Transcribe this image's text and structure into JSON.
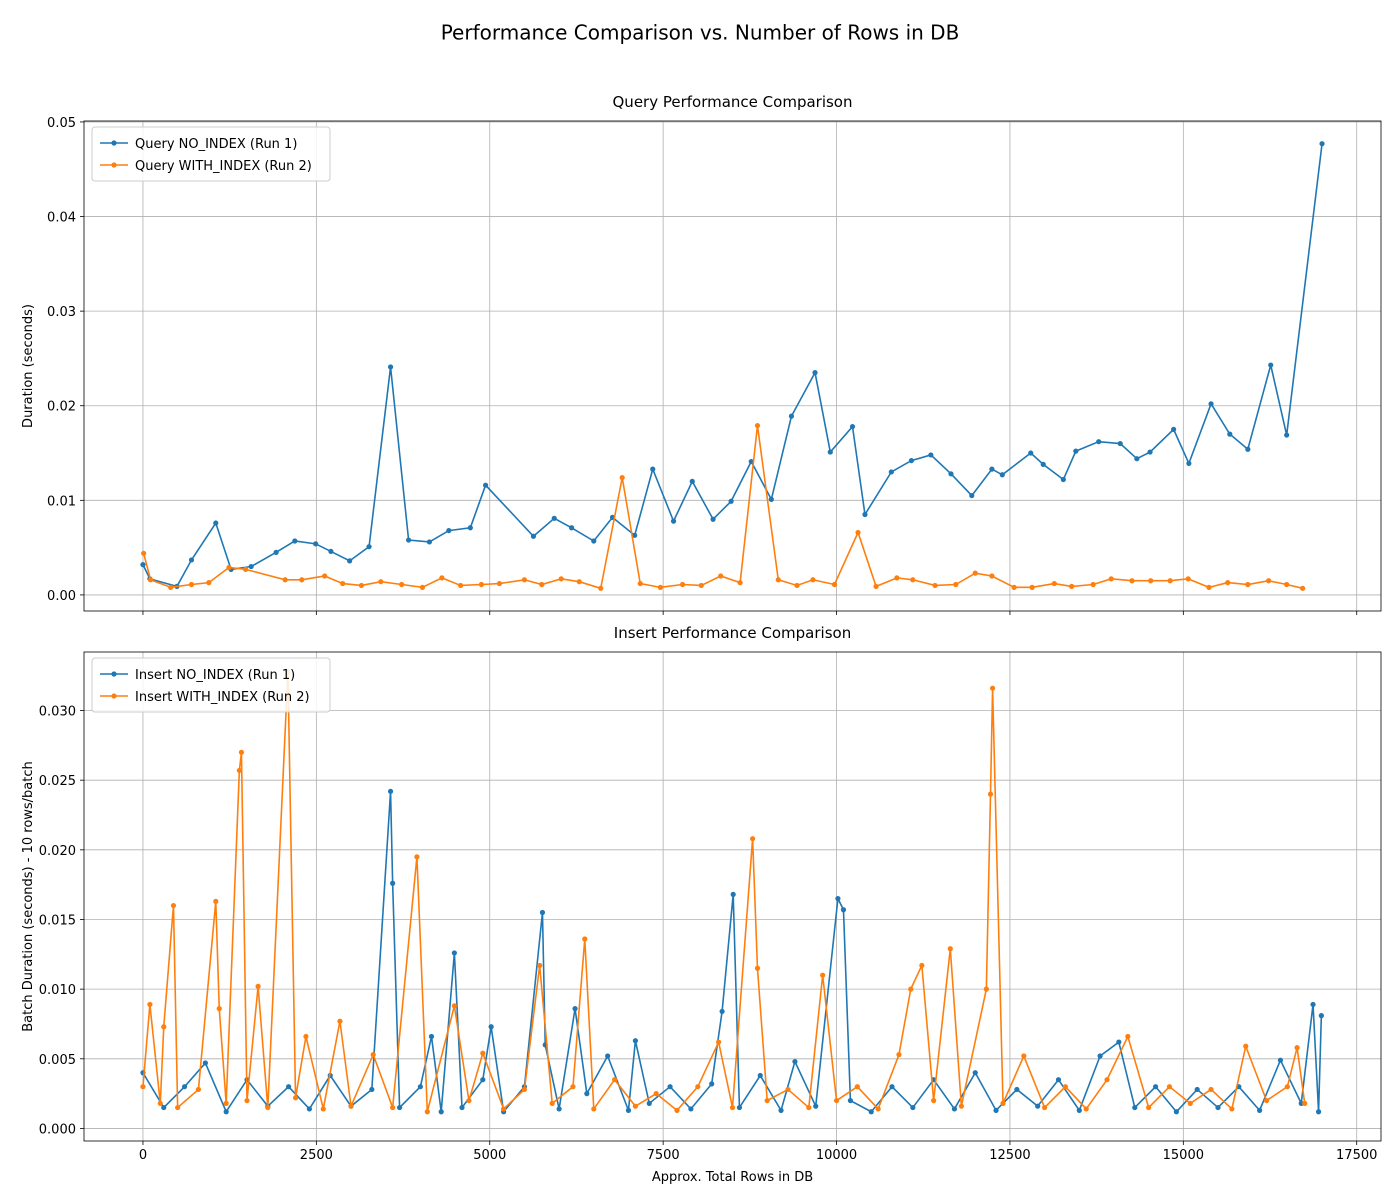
{
  "title": "Performance Comparison vs. Number of Rows in DB",
  "chart_data": [
    {
      "type": "line",
      "title": "Query Performance Comparison",
      "ylabel": "Duration (seconds)",
      "xlim": [
        -850,
        17850
      ],
      "ylim": [
        -0.0017,
        0.0501
      ],
      "xticks": [
        0,
        2500,
        5000,
        7500,
        10000,
        12500,
        15000,
        17500
      ],
      "yticks": [
        {
          "value": 0,
          "label": "0.00"
        },
        0.01,
        0.02,
        0.03,
        0.04,
        0.05
      ],
      "grid": true,
      "legend": "upper-left",
      "series": [
        {
          "name": "Query NO_INDEX (Run 1)",
          "color": "#1f77b4",
          "x": [
            0,
            100,
            490,
            700,
            1050,
            1270,
            1560,
            1920,
            2190,
            2490,
            2710,
            2980,
            3260,
            3570,
            3830,
            4130,
            4410,
            4720,
            4940,
            5630,
            5930,
            6180,
            6500,
            6770,
            7090,
            7350,
            7650,
            7920,
            8220,
            8480,
            8770,
            9060,
            9350,
            9690,
            9910,
            10230,
            10410,
            10790,
            11080,
            11360,
            11650,
            11950,
            12240,
            12390,
            12800,
            12980,
            13270,
            13450,
            13780,
            14090,
            14330,
            14520,
            14860,
            15080,
            15400,
            15670,
            15930,
            16260,
            16490,
            17000
          ],
          "values": [
            0.0032,
            0.0017,
            0.0009,
            0.0037,
            0.0076,
            0.0027,
            0.003,
            0.0045,
            0.0057,
            0.0054,
            0.0046,
            0.0036,
            0.0051,
            0.0241,
            0.0058,
            0.0056,
            0.0068,
            0.0071,
            0.0116,
            0.0062,
            0.0081,
            0.0071,
            0.0057,
            0.0082,
            0.0063,
            0.0133,
            0.0078,
            0.012,
            0.008,
            0.0099,
            0.0141,
            0.0101,
            0.0189,
            0.0235,
            0.0151,
            0.0178,
            0.0085,
            0.013,
            0.0142,
            0.0148,
            0.0128,
            0.0105,
            0.0133,
            0.0127,
            0.015,
            0.0138,
            0.0122,
            0.0152,
            0.0162,
            0.016,
            0.0144,
            0.0151,
            0.0175,
            0.0139,
            0.0202,
            0.017,
            0.0154,
            0.0243,
            0.0169,
            0.0477
          ]
        },
        {
          "name": "Query WITH_INDEX (Run 2)",
          "color": "#ff7f0e",
          "x": [
            10,
            110,
            400,
            700,
            950,
            1240,
            1480,
            2050,
            2290,
            2620,
            2880,
            3150,
            3430,
            3730,
            4030,
            4310,
            4580,
            4880,
            5140,
            5500,
            5750,
            6030,
            6290,
            6600,
            6910,
            7170,
            7460,
            7780,
            8050,
            8330,
            8610,
            8860,
            9160,
            9430,
            9660,
            9970,
            10310,
            10570,
            10870,
            11100,
            11420,
            11720,
            12000,
            12240,
            12560,
            12820,
            13140,
            13390,
            13700,
            13960,
            14260,
            14530,
            14810,
            15070,
            15370,
            15640,
            15930,
            16230,
            16490,
            16720
          ],
          "values": [
            0.0044,
            0.0016,
            0.0008,
            0.0011,
            0.0013,
            0.0029,
            0.0027,
            0.0016,
            0.0016,
            0.002,
            0.0012,
            0.001,
            0.0014,
            0.0011,
            0.0008,
            0.0018,
            0.001,
            0.0011,
            0.0012,
            0.0016,
            0.0011,
            0.0017,
            0.0014,
            0.0007,
            0.0124,
            0.0012,
            0.0008,
            0.0011,
            0.001,
            0.002,
            0.0013,
            0.0179,
            0.0016,
            0.001,
            0.0016,
            0.0011,
            0.0066,
            0.0009,
            0.0018,
            0.0016,
            0.001,
            0.0011,
            0.0023,
            0.002,
            0.0008,
            0.0008,
            0.0012,
            0.0009,
            0.0011,
            0.0017,
            0.0015,
            0.0015,
            0.0015,
            0.0017,
            0.0008,
            0.0013,
            0.0011,
            0.0015,
            0.0011,
            0.0007
          ]
        }
      ]
    },
    {
      "type": "line",
      "title": "Insert Performance Comparison",
      "xlabel": "Approx. Total Rows in DB",
      "ylabel": "Batch Duration (seconds) - 10 rows/batch",
      "xlim": [
        -850,
        17850
      ],
      "ylim": [
        -0.0009,
        0.0342
      ],
      "xticks": [
        0,
        2500,
        5000,
        7500,
        10000,
        12500,
        15000,
        17500
      ],
      "yticks": [
        {
          "value": 0,
          "label": "0.000"
        },
        {
          "value": 0.005,
          "label": "0.005"
        },
        {
          "value": 0.01,
          "label": "0.010"
        },
        {
          "value": 0.015,
          "label": "0.015"
        },
        {
          "value": 0.02,
          "label": "0.020"
        },
        {
          "value": 0.025,
          "label": "0.025"
        },
        {
          "value": 0.03,
          "label": "0.030"
        }
      ],
      "grid": true,
      "legend": "upper-left",
      "series": [
        {
          "name": "Insert NO_INDEX (Run 1)",
          "color": "#1f77b4",
          "x": [
            0,
            300,
            600,
            900,
            1200,
            1500,
            1800,
            2100,
            2400,
            2700,
            3000,
            3300,
            3570,
            3600,
            3700,
            4000,
            4160,
            4300,
            4490,
            4600,
            4900,
            5020,
            5200,
            5500,
            5760,
            5800,
            6000,
            6230,
            6400,
            6700,
            7000,
            7100,
            7300,
            7600,
            7900,
            8200,
            8350,
            8510,
            8600,
            8900,
            9200,
            9400,
            9700,
            10020,
            10100,
            10200,
            10500,
            10800,
            11100,
            11400,
            11700,
            12000,
            12300,
            12600,
            12900,
            13200,
            13500,
            13800,
            14070,
            14300,
            14600,
            14900,
            15200,
            15500,
            15800,
            16100,
            16400,
            16700,
            16870,
            16950,
            16990
          ],
          "values": [
            0.004,
            0.0015,
            0.003,
            0.0047,
            0.0012,
            0.0035,
            0.0016,
            0.003,
            0.0014,
            0.0038,
            0.0016,
            0.0028,
            0.0242,
            0.0176,
            0.0015,
            0.003,
            0.0066,
            0.0012,
            0.0126,
            0.0015,
            0.0035,
            0.0073,
            0.0012,
            0.003,
            0.0155,
            0.006,
            0.0014,
            0.0086,
            0.0025,
            0.0052,
            0.0013,
            0.0063,
            0.0018,
            0.003,
            0.0014,
            0.0032,
            0.0084,
            0.0168,
            0.0015,
            0.0038,
            0.0013,
            0.0048,
            0.0016,
            0.0165,
            0.0157,
            0.002,
            0.0012,
            0.003,
            0.0015,
            0.0035,
            0.0014,
            0.004,
            0.0013,
            0.0028,
            0.0016,
            0.0035,
            0.0013,
            0.0052,
            0.0062,
            0.0015,
            0.003,
            0.0012,
            0.0028,
            0.0015,
            0.003,
            0.0013,
            0.0049,
            0.0018,
            0.0089,
            0.0012,
            0.0081
          ]
        },
        {
          "name": "Insert WITH_INDEX (Run 2)",
          "color": "#ff7f0e",
          "x": [
            0,
            100,
            250,
            300,
            440,
            500,
            800,
            1050,
            1100,
            1200,
            1390,
            1420,
            1500,
            1660,
            1800,
            2090,
            2200,
            2350,
            2600,
            2840,
            3000,
            3320,
            3600,
            3950,
            4100,
            4490,
            4700,
            4900,
            5200,
            5500,
            5720,
            5900,
            6200,
            6370,
            6500,
            6800,
            7100,
            7400,
            7700,
            8000,
            8300,
            8500,
            8790,
            8860,
            9000,
            9300,
            9600,
            9800,
            10000,
            10300,
            10600,
            10900,
            11070,
            11230,
            11400,
            11640,
            11800,
            12160,
            12220,
            12250,
            12400,
            12700,
            13000,
            13300,
            13600,
            13900,
            14200,
            14500,
            14800,
            15100,
            15400,
            15700,
            15900,
            16200,
            16500,
            16640,
            16750
          ],
          "values": [
            0.003,
            0.0089,
            0.0018,
            0.0073,
            0.016,
            0.0015,
            0.0028,
            0.0163,
            0.0086,
            0.0018,
            0.0257,
            0.027,
            0.002,
            0.0102,
            0.0015,
            0.0328,
            0.0022,
            0.0066,
            0.0014,
            0.0077,
            0.0016,
            0.0053,
            0.0015,
            0.0195,
            0.0012,
            0.0088,
            0.002,
            0.0054,
            0.0014,
            0.0028,
            0.0117,
            0.0018,
            0.003,
            0.0136,
            0.0014,
            0.0035,
            0.0016,
            0.0025,
            0.0013,
            0.003,
            0.0062,
            0.0015,
            0.0208,
            0.0115,
            0.002,
            0.0028,
            0.0015,
            0.011,
            0.002,
            0.003,
            0.0014,
            0.0053,
            0.01,
            0.0117,
            0.002,
            0.0129,
            0.0016,
            0.01,
            0.024,
            0.0316,
            0.0018,
            0.0052,
            0.0015,
            0.003,
            0.0014,
            0.0035,
            0.0066,
            0.0015,
            0.003,
            0.0018,
            0.0028,
            0.0014,
            0.0059,
            0.002,
            0.003,
            0.0058,
            0.0018
          ]
        }
      ]
    }
  ]
}
